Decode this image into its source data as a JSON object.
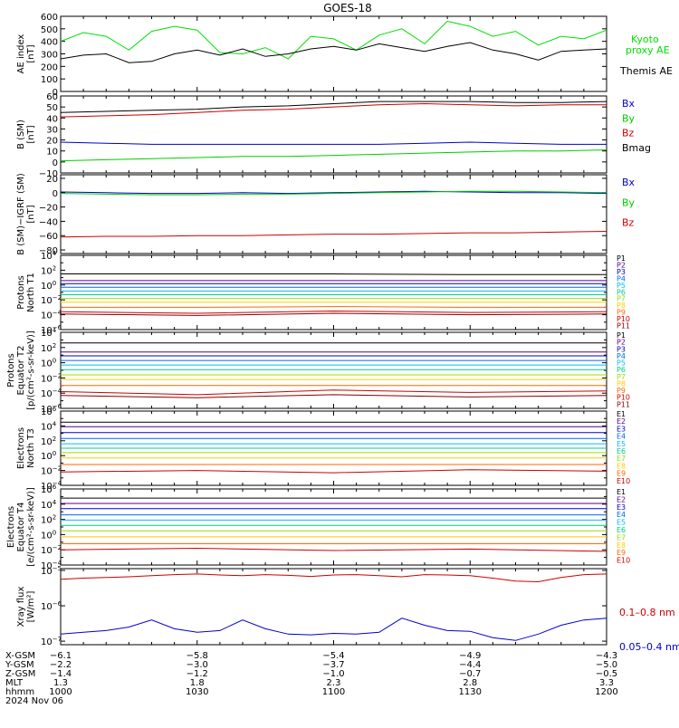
{
  "title": "GOES-18",
  "chart_data": [
    {
      "type": "line",
      "id": "ae",
      "ylabel": [
        "AE index",
        "[nT]"
      ],
      "ylim": [
        0,
        600
      ],
      "yscale": "linear",
      "yticks": [
        0,
        100,
        200,
        300,
        400,
        500,
        600
      ],
      "ytick_labels": [
        "0",
        "100",
        "200",
        "300",
        "400",
        "500",
        "600"
      ],
      "x": [
        1000,
        1005,
        1010,
        1015,
        1020,
        1025,
        1030,
        1035,
        1040,
        1045,
        1050,
        1055,
        1100,
        1105,
        1110,
        1115,
        1120,
        1125,
        1130,
        1135,
        1140,
        1145,
        1150,
        1155,
        1200
      ],
      "series": [
        {
          "name": "Kyoto proxy AE",
          "color": "#00e000",
          "legend": [
            "Kyoto",
            "proxy AE"
          ],
          "values": [
            400,
            470,
            440,
            330,
            480,
            520,
            490,
            310,
            300,
            350,
            260,
            440,
            420,
            330,
            450,
            500,
            380,
            560,
            520,
            440,
            480,
            370,
            440,
            420,
            490
          ]
        },
        {
          "name": "Themis AE",
          "color": "#000000",
          "legend": [
            "Themis AE"
          ],
          "values": [
            260,
            290,
            300,
            230,
            240,
            300,
            330,
            290,
            340,
            280,
            300,
            340,
            360,
            330,
            380,
            350,
            320,
            360,
            390,
            330,
            300,
            250,
            320,
            330,
            340
          ]
        }
      ]
    },
    {
      "type": "line",
      "id": "bsm",
      "ylabel": [
        "B (SM)",
        "[nT]"
      ],
      "ylim": [
        -10,
        60
      ],
      "yscale": "linear",
      "yticks": [
        -10,
        0,
        10,
        20,
        30,
        40,
        50,
        60
      ],
      "ytick_labels": [
        "−10",
        "0",
        "10",
        "20",
        "30",
        "40",
        "50",
        "60"
      ],
      "x": [
        1000,
        1010,
        1020,
        1030,
        1040,
        1050,
        1100,
        1110,
        1120,
        1130,
        1140,
        1150,
        1200
      ],
      "series": [
        {
          "name": "Bx",
          "color": "#0000cc",
          "values": [
            18,
            17,
            16,
            16,
            16,
            16,
            16,
            16,
            17,
            18,
            17,
            16,
            16
          ]
        },
        {
          "name": "By",
          "color": "#00cc00",
          "values": [
            1,
            2,
            3,
            4,
            5,
            5,
            6,
            7,
            8,
            9,
            10,
            10,
            11
          ]
        },
        {
          "name": "Bz",
          "color": "#cc0000",
          "values": [
            41,
            42,
            43,
            45,
            47,
            48,
            50,
            52,
            53,
            52,
            51,
            52,
            52
          ]
        },
        {
          "name": "Bmag",
          "color": "#000000",
          "values": [
            45,
            46,
            47,
            48,
            50,
            51,
            53,
            55,
            55,
            55,
            54,
            54,
            55
          ]
        }
      ]
    },
    {
      "type": "line",
      "id": "bigrf",
      "ylabel": [
        "B (SM)−IGRF (SM)",
        "[nT]"
      ],
      "ylim": [
        -85,
        25
      ],
      "yscale": "linear",
      "yticks": [
        -80,
        -60,
        -40,
        -20,
        0,
        20
      ],
      "ytick_labels": [
        "−80",
        "−60",
        "−40",
        "−20",
        "0",
        "20"
      ],
      "x": [
        1000,
        1010,
        1020,
        1030,
        1040,
        1050,
        1100,
        1110,
        1120,
        1130,
        1140,
        1150,
        1200
      ],
      "series": [
        {
          "name": "Bx",
          "color": "#0000cc",
          "values": [
            1,
            0,
            -1,
            -1,
            0,
            -1,
            0,
            1,
            2,
            1,
            0,
            0,
            -1
          ]
        },
        {
          "name": "By",
          "color": "#00cc00",
          "values": [
            -1,
            -2,
            -3,
            -3,
            -2,
            -2,
            -1,
            0,
            1,
            2,
            2,
            1,
            0
          ]
        },
        {
          "name": "Bz",
          "color": "#cc0000",
          "values": [
            -62,
            -61,
            -61,
            -60,
            -60,
            -59,
            -58,
            -58,
            -57,
            -56,
            -56,
            -55,
            -54
          ]
        }
      ]
    },
    {
      "type": "line",
      "id": "pt1",
      "ylabel": [
        "Protons",
        "North T1"
      ],
      "yscale": "log",
      "ylim_exp": [
        -6,
        4
      ],
      "ytick_exp": [
        -6,
        -4,
        -2,
        0,
        2,
        4
      ],
      "x": [
        1000,
        1030,
        1100,
        1130,
        1200
      ],
      "series": [
        {
          "name": "P1",
          "color": "#000000",
          "values": [
            1.5,
            1.5,
            1.5,
            1.4,
            1.4
          ]
        },
        {
          "name": "P2",
          "color": "#550088",
          "values": [
            0.6,
            0.6,
            0.6,
            0.6,
            0.6
          ]
        },
        {
          "name": "P3",
          "color": "#0000cc",
          "values": [
            0.2,
            0.2,
            0.2,
            0.2,
            0.2
          ]
        },
        {
          "name": "P4",
          "color": "#0066ff",
          "values": [
            -0.3,
            -0.3,
            -0.3,
            -0.3,
            -0.3
          ]
        },
        {
          "name": "P5",
          "color": "#00bbff",
          "values": [
            -0.8,
            -0.8,
            -0.8,
            -0.8,
            -0.8
          ]
        },
        {
          "name": "P6",
          "color": "#00cc88",
          "values": [
            -1.3,
            -1.3,
            -1.3,
            -1.3,
            -1.3
          ]
        },
        {
          "name": "P7",
          "color": "#99dd00",
          "values": [
            -1.8,
            -1.8,
            -1.8,
            -1.8,
            -1.8
          ]
        },
        {
          "name": "P8",
          "color": "#ffcc00",
          "values": [
            -2.3,
            -2.3,
            -2.3,
            -2.3,
            -2.3
          ]
        },
        {
          "name": "P9",
          "color": "#ff6600",
          "values": [
            -3.0,
            -3.0,
            -2.9,
            -3.0,
            -3.0
          ]
        },
        {
          "name": "P10",
          "color": "#cc0000",
          "values": [
            -3.6,
            -3.8,
            -3.5,
            -3.7,
            -3.6
          ]
        },
        {
          "name": "P11",
          "color": "#880000",
          "values": [
            -3.9,
            -4.1,
            -3.8,
            -4.0,
            -3.9
          ]
        }
      ]
    },
    {
      "type": "line",
      "id": "pt2",
      "ylabel": [
        "Protons",
        "Equator T2",
        "[p/(cm²-s-sr-keV)]"
      ],
      "yscale": "log",
      "ylim_exp": [
        -6,
        4
      ],
      "ytick_exp": [
        -6,
        -4,
        -2,
        0,
        2,
        4
      ],
      "x": [
        1000,
        1030,
        1100,
        1130,
        1200
      ],
      "series": [
        {
          "name": "P1",
          "color": "#000000",
          "values": [
            2.6,
            2.6,
            2.6,
            2.6,
            2.6
          ]
        },
        {
          "name": "P2",
          "color": "#550088",
          "values": [
            1.4,
            1.4,
            1.4,
            1.4,
            1.4
          ]
        },
        {
          "name": "P3",
          "color": "#0000cc",
          "values": [
            0.9,
            0.9,
            0.9,
            0.9,
            0.9
          ]
        },
        {
          "name": "P4",
          "color": "#0066ff",
          "values": [
            0.3,
            0.3,
            0.3,
            0.3,
            0.3
          ]
        },
        {
          "name": "P5",
          "color": "#00bbff",
          "values": [
            -0.3,
            -0.3,
            -0.3,
            -0.3,
            -0.3
          ]
        },
        {
          "name": "P6",
          "color": "#00cc88",
          "values": [
            -0.9,
            -0.9,
            -0.9,
            -0.9,
            -0.9
          ]
        },
        {
          "name": "P7",
          "color": "#99dd00",
          "values": [
            -1.6,
            -1.6,
            -1.6,
            -1.6,
            -1.6
          ]
        },
        {
          "name": "P8",
          "color": "#ffcc00",
          "values": [
            -2.2,
            -2.2,
            -2.2,
            -2.2,
            -2.2
          ]
        },
        {
          "name": "P9",
          "color": "#ff6600",
          "values": [
            -3.0,
            -3.0,
            -3.0,
            -3.0,
            -3.0
          ]
        },
        {
          "name": "P10",
          "color": "#cc0000",
          "values": [
            -3.8,
            -4.2,
            -3.6,
            -3.9,
            -3.7
          ]
        },
        {
          "name": "P11",
          "color": "#880000",
          "values": [
            -4.3,
            -4.6,
            -4.2,
            -4.5,
            -4.3
          ]
        }
      ]
    },
    {
      "type": "line",
      "id": "et3",
      "ylabel": [
        "Electrons",
        "North T3"
      ],
      "yscale": "log",
      "ylim_exp": [
        -4,
        6
      ],
      "ytick_exp": [
        -4,
        -2,
        0,
        2,
        4,
        6
      ],
      "x": [
        1000,
        1030,
        1100,
        1130,
        1200
      ],
      "series": [
        {
          "name": "E1",
          "color": "#000000",
          "values": [
            4.5,
            4.5,
            4.5,
            4.5,
            4.5
          ]
        },
        {
          "name": "E2",
          "color": "#550088",
          "values": [
            3.9,
            3.9,
            3.9,
            3.9,
            3.9
          ]
        },
        {
          "name": "E3",
          "color": "#0000cc",
          "values": [
            3.1,
            3.1,
            3.1,
            3.1,
            3.1
          ]
        },
        {
          "name": "E4",
          "color": "#0066ff",
          "values": [
            2.3,
            2.3,
            2.3,
            2.3,
            2.3
          ]
        },
        {
          "name": "E5",
          "color": "#00bbff",
          "values": [
            1.6,
            1.6,
            1.6,
            1.6,
            1.6
          ]
        },
        {
          "name": "E6",
          "color": "#00cc88",
          "values": [
            1.0,
            1.0,
            1.0,
            1.0,
            1.0
          ]
        },
        {
          "name": "E7",
          "color": "#99dd00",
          "values": [
            0.4,
            0.4,
            0.4,
            0.4,
            0.4
          ]
        },
        {
          "name": "E8",
          "color": "#ffcc00",
          "values": [
            -0.3,
            -0.3,
            -0.3,
            -0.3,
            -0.3
          ]
        },
        {
          "name": "E9",
          "color": "#ff6600",
          "values": [
            -1.2,
            -1.2,
            -1.2,
            -1.2,
            -1.2
          ]
        },
        {
          "name": "E10",
          "color": "#cc0000",
          "values": [
            -2.2,
            -2.0,
            -2.3,
            -1.9,
            -2.1
          ]
        }
      ]
    },
    {
      "type": "line",
      "id": "et4",
      "ylabel": [
        "Electrons",
        "Equator T4",
        "[e/(cm²-s-sr-keV)]"
      ],
      "yscale": "log",
      "ylim_exp": [
        -4,
        6
      ],
      "ytick_exp": [
        -4,
        -2,
        0,
        2,
        4,
        6
      ],
      "x": [
        1000,
        1030,
        1100,
        1130,
        1200
      ],
      "series": [
        {
          "name": "E1",
          "color": "#000000",
          "values": [
            4.8,
            4.8,
            4.8,
            4.8,
            4.8
          ]
        },
        {
          "name": "E2",
          "color": "#550088",
          "values": [
            4.1,
            4.1,
            4.1,
            4.1,
            4.1
          ]
        },
        {
          "name": "E3",
          "color": "#0000cc",
          "values": [
            3.4,
            3.4,
            3.4,
            3.4,
            3.4
          ]
        },
        {
          "name": "E4",
          "color": "#0066ff",
          "values": [
            2.6,
            2.6,
            2.6,
            2.6,
            2.6
          ]
        },
        {
          "name": "E5",
          "color": "#00bbff",
          "values": [
            1.9,
            1.9,
            1.9,
            1.9,
            1.9
          ]
        },
        {
          "name": "E6",
          "color": "#00cc88",
          "values": [
            1.2,
            1.2,
            1.2,
            1.2,
            1.2
          ]
        },
        {
          "name": "E7",
          "color": "#99dd00",
          "values": [
            0.5,
            0.5,
            0.5,
            0.5,
            0.5
          ]
        },
        {
          "name": "E8",
          "color": "#ffcc00",
          "values": [
            -0.3,
            -0.3,
            -0.3,
            -0.3,
            -0.3
          ]
        },
        {
          "name": "E9",
          "color": "#ff6600",
          "values": [
            -1.2,
            -1.2,
            -1.2,
            -1.2,
            -1.2
          ]
        },
        {
          "name": "E10",
          "color": "#cc0000",
          "values": [
            -2.0,
            -1.8,
            -2.1,
            -1.9,
            -2.2
          ]
        }
      ]
    },
    {
      "type": "line",
      "id": "xray",
      "ylabel": [
        "Xray flux",
        "[W/m²]"
      ],
      "yscale": "log",
      "ylim_exp": [
        -7.1,
        -4.95
      ],
      "ytick_exp": [
        -7,
        -6,
        -5
      ],
      "x": [
        1000,
        1005,
        1010,
        1015,
        1020,
        1025,
        1030,
        1035,
        1040,
        1045,
        1050,
        1055,
        1100,
        1105,
        1110,
        1115,
        1120,
        1125,
        1130,
        1135,
        1140,
        1145,
        1150,
        1155,
        1200
      ],
      "series": [
        {
          "name": "0.1–0.8 nm",
          "color": "#cc0000",
          "values": [
            -5.25,
            -5.22,
            -5.2,
            -5.18,
            -5.15,
            -5.12,
            -5.1,
            -5.13,
            -5.15,
            -5.12,
            -5.14,
            -5.17,
            -5.13,
            -5.12,
            -5.15,
            -5.18,
            -5.12,
            -5.13,
            -5.15,
            -5.22,
            -5.3,
            -5.32,
            -5.2,
            -5.12,
            -5.1
          ]
        },
        {
          "name": "0.05–0.4 nm",
          "color": "#0000cc",
          "values": [
            -6.8,
            -6.75,
            -6.7,
            -6.6,
            -6.4,
            -6.65,
            -6.75,
            -6.7,
            -6.4,
            -6.65,
            -6.8,
            -6.82,
            -6.78,
            -6.8,
            -6.75,
            -6.35,
            -6.55,
            -6.7,
            -6.72,
            -6.9,
            -6.98,
            -6.8,
            -6.55,
            -6.4,
            -6.35
          ]
        }
      ]
    }
  ],
  "x_axis": {
    "xlim": [
      1000,
      1200
    ],
    "ticks": [
      1000,
      1030,
      1100,
      1130,
      1200
    ],
    "row_labels": [
      "X-GSM",
      "Y-GSM",
      "Z-GSM",
      "MLT",
      "hhmm"
    ],
    "date_label": "2024 Nov 06",
    "rows": [
      [
        "−6.1",
        "−5.8",
        "−5.4",
        "−4.9",
        "−4.3"
      ],
      [
        "−2.2",
        "−3.0",
        "−3.7",
        "−4.4",
        "−5.0"
      ],
      [
        "−1.4",
        "−1.2",
        "−1.0",
        "−0.7",
        "−0.5"
      ],
      [
        "1.3",
        "1.8",
        "2.3",
        "2.8",
        "3.3"
      ],
      [
        "1000",
        "1030",
        "1100",
        "1130",
        "1200"
      ]
    ]
  }
}
